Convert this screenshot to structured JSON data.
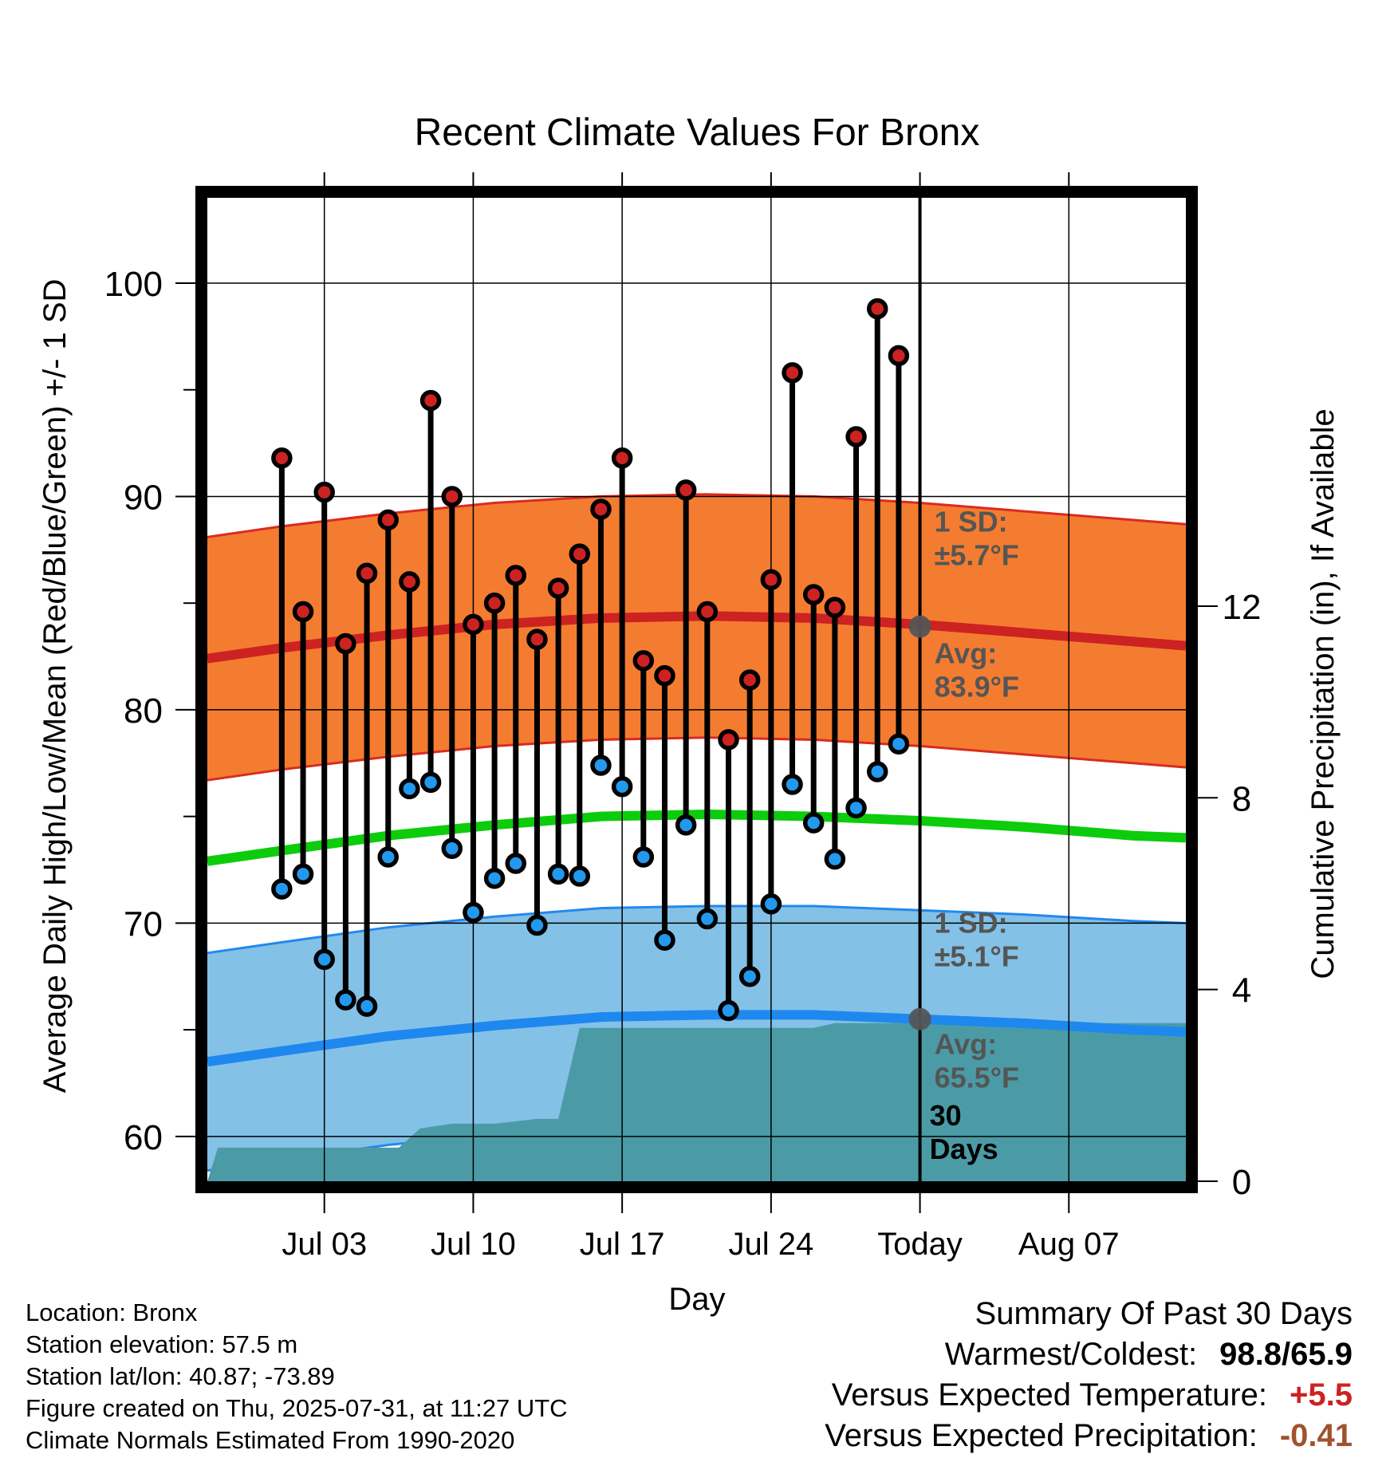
{
  "chart_data": {
    "type": "line",
    "title": "Recent Climate Values For Bronx",
    "xlabel": "Day",
    "ylabel": "Average Daily High/Low/Mean (Red/Blue/Green) +/- 1 SD",
    "y2label": "Cumulative Precipitation (in), If Available",
    "ylim": [
      57.9,
      104.0
    ],
    "y2lim": [
      0,
      20.52
    ],
    "x_range_days": [
      -33.5,
      12.5
    ],
    "y_ticks": [
      "60",
      "70",
      "80",
      "90",
      "100"
    ],
    "y2_ticks": [
      "0",
      "4",
      "8",
      "12"
    ],
    "x_ticks": [
      {
        "day": -28,
        "label": "Jul 03"
      },
      {
        "day": -21,
        "label": "Jul 10"
      },
      {
        "day": -14,
        "label": "Jul 17"
      },
      {
        "day": -7,
        "label": "Jul 24"
      },
      {
        "day": 0,
        "label": "Today"
      },
      {
        "day": 7,
        "label": "Aug 07"
      }
    ],
    "grid": true,
    "colors": {
      "high_band": "#f47c30",
      "high_band_edge": "#d92b20",
      "high_avg": "#cc2222",
      "low_band": "#84c1e6",
      "low_band_edge": "#2288ee",
      "low_avg": "#1e88ee",
      "mean": "#0ccc0c",
      "precip": "#4a9ba6",
      "high_marker": "#cc2222",
      "low_marker": "#2299ee",
      "annotation": "#555555",
      "plus": "#cc2222",
      "minus": "#a0522d"
    },
    "days": [
      -30,
      -29,
      -28,
      -27,
      -26,
      -25,
      -24,
      -23,
      -22,
      -21,
      -20,
      -19,
      -18,
      -17,
      -16,
      -15,
      -14,
      -13,
      -12,
      -11,
      -10,
      -9,
      -8,
      -7,
      -6,
      -5,
      -4,
      -3,
      -2,
      -1
    ],
    "series": [
      {
        "name": "High",
        "values": [
          91.8,
          84.6,
          90.2,
          83.1,
          86.4,
          88.9,
          86.0,
          94.5,
          90.0,
          84.0,
          85.0,
          86.3,
          83.3,
          85.7,
          87.3,
          89.4,
          91.8,
          82.3,
          81.6,
          90.3,
          84.6,
          78.6,
          81.4,
          86.1,
          95.8,
          85.4,
          84.8,
          92.8,
          98.8,
          96.6
        ]
      },
      {
        "name": "Low",
        "values": [
          71.6,
          72.3,
          68.3,
          66.4,
          66.1,
          73.1,
          76.3,
          76.6,
          73.5,
          70.5,
          72.1,
          72.8,
          69.9,
          72.3,
          72.2,
          77.4,
          76.4,
          73.1,
          69.2,
          74.6,
          70.2,
          65.9,
          67.5,
          70.9,
          76.5,
          74.7,
          73.0,
          75.4,
          77.1,
          78.4
        ]
      }
    ],
    "normals": {
      "x": [
        -33.5,
        -30,
        -25,
        -20,
        -15,
        -10,
        -5,
        0,
        5,
        10,
        12.5
      ],
      "high_avg": [
        82.4,
        82.9,
        83.5,
        84.0,
        84.3,
        84.4,
        84.3,
        84.0,
        83.6,
        83.2,
        83.0
      ],
      "low_avg": [
        63.5,
        64.0,
        64.7,
        65.2,
        65.6,
        65.7,
        65.7,
        65.5,
        65.3,
        65.0,
        64.9
      ],
      "mean": [
        72.9,
        73.4,
        74.1,
        74.6,
        75.0,
        75.1,
        75.0,
        74.8,
        74.5,
        74.1,
        74.0
      ],
      "high_sd": 5.7,
      "low_sd": 5.1
    },
    "precip_cumulative": {
      "days": [
        -33.5,
        -33,
        -32.5,
        -30,
        -24.5,
        -23.5,
        -22,
        -20,
        -18,
        -17,
        -16,
        -15,
        -5,
        -4,
        0,
        12.5
      ],
      "values": [
        0.0,
        0.7,
        0.7,
        0.7,
        0.7,
        1.1,
        1.2,
        1.2,
        1.3,
        1.3,
        3.2,
        3.2,
        3.2,
        3.3,
        3.3,
        3.3
      ]
    },
    "annotations": {
      "high_sd_label": [
        "1 SD:",
        "±5.7°F"
      ],
      "high_avg_label": [
        "Avg:",
        "83.9°F"
      ],
      "low_sd_label": [
        "1 SD:",
        "±5.1°F"
      ],
      "low_avg_label": [
        "Avg:",
        "65.5°F"
      ],
      "days_label": [
        "30",
        "Days"
      ],
      "high_avg_value": 83.9,
      "low_avg_value": 65.5
    }
  },
  "footer": {
    "location": "Location: Bronx",
    "elevation": "Station elevation: 57.5 m",
    "latlon": "Station lat/lon: 40.87; -73.89",
    "created": "Figure created on Thu, 2025-07-31, at 11:27 UTC",
    "normals": "Climate Normals Estimated From 1990-2020"
  },
  "summary": {
    "title": "Summary Of Past 30 Days",
    "warm_cold_label": "Warmest/Coldest:",
    "warm_cold_value": "98.8/65.9",
    "temp_label": "Versus Expected Temperature:",
    "temp_value": "+5.5",
    "precip_label": "Versus Expected Precipitation:",
    "precip_value": "-0.41"
  }
}
